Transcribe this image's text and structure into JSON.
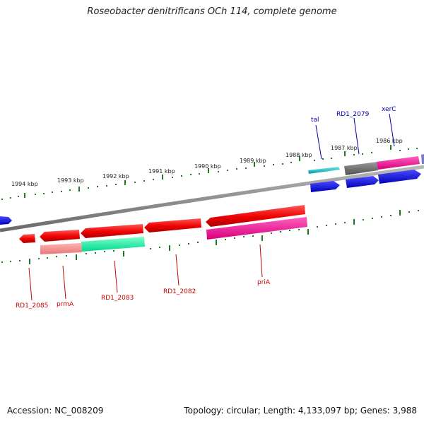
{
  "title": "Roseobacter denitrificans OCh 114, complete genome",
  "accession_text": "Accession: NC_008209",
  "summary_text": "Topology: circular; Length: 4,133,097 bp; Genes: 3,988",
  "colors": {
    "backbone": "#8a8a8a",
    "tick": "#1f7a1f",
    "reverse_label": "#cc0000",
    "forward_label": "#0000aa"
  },
  "scale_labels": [
    "1994 kbp",
    "1993 kbp",
    "1992 kbp",
    "1991 kbp",
    "1990 kbp",
    "1989 kbp",
    "1988 kbp",
    "1987 kbp",
    "1986 kbp"
  ],
  "gene_labels": {
    "tal": "tal",
    "rd1_2079": "RD1_2079",
    "xerc": "xerC",
    "rd1_2085": "RD1_2085",
    "prma": "prmA",
    "rd1_2083": "RD1_2083",
    "rd1_2082": "RD1_2082",
    "pria": "priA"
  }
}
